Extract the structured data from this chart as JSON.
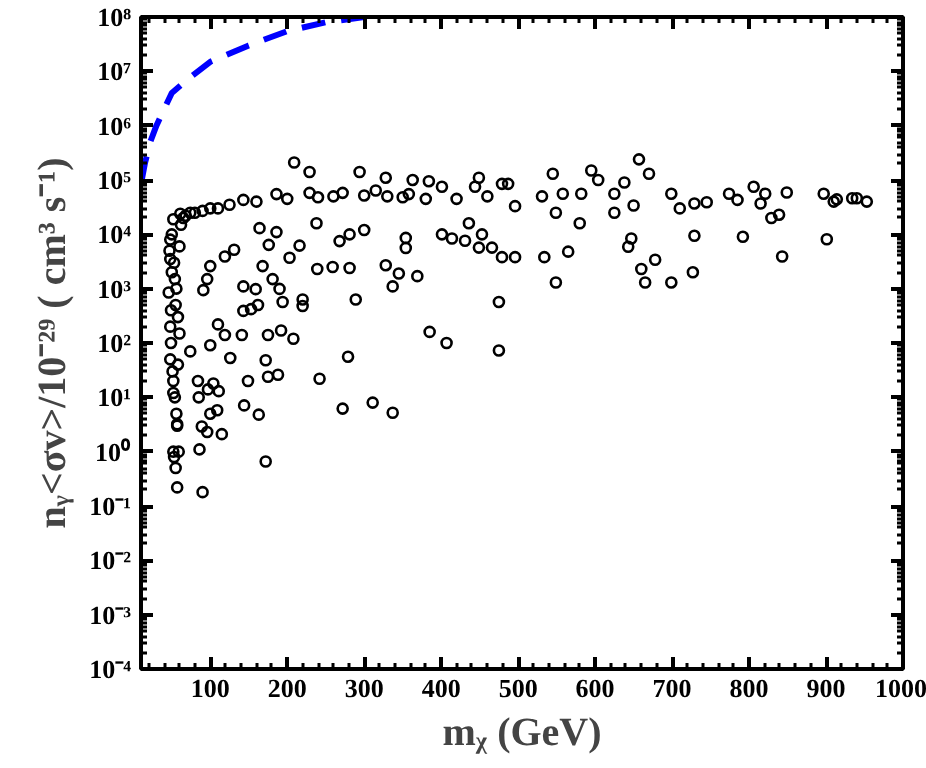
{
  "chart_data": {
    "type": "scatter",
    "xlabel": "mᵪ (GeV)",
    "ylabel": "nᵧ<σv>/10⁻²⁹ ( cm³ s⁻¹)",
    "log": "y",
    "grid": false,
    "xlim": [
      10,
      1000
    ],
    "xticks": [
      100,
      200,
      300,
      400,
      500,
      600,
      700,
      800,
      900,
      1000
    ],
    "ylim": [
      0.0001,
      100000000
    ],
    "yticks": [
      {
        "value": 0.0001,
        "label": "10⁻⁴"
      },
      {
        "value": 0.001,
        "label": "10⁻³"
      },
      {
        "value": 0.01,
        "label": "10⁻²"
      },
      {
        "value": 0.1,
        "label": "10⁻¹"
      },
      {
        "value": 1,
        "label": "10⁰"
      },
      {
        "value": 10,
        "label": "10¹"
      },
      {
        "value": 100,
        "label": "10²"
      },
      {
        "value": 1000,
        "label": "10³"
      },
      {
        "value": 10000,
        "label": "10⁴"
      },
      {
        "value": 100000,
        "label": "10⁵"
      },
      {
        "value": 1000000,
        "label": "10⁶"
      },
      {
        "value": 10000000,
        "label": "10⁷"
      },
      {
        "value": 100000000,
        "label": "10⁸"
      }
    ],
    "series": [
      {
        "type": "line",
        "color": "#0000ff",
        "line_style": "dashed",
        "x": [
          11,
          15,
          22,
          30,
          50,
          75,
          100,
          150,
          200,
          250,
          300
        ],
        "values": [
          100000,
          200000,
          500000,
          1000000,
          4000000,
          8000000,
          15000000,
          30000000,
          55000000,
          80000000,
          100000000
        ]
      },
      {
        "color": "#000000",
        "marker": "circle",
        "x": [
          57,
          90,
          55,
          52,
          57,
          52,
          48,
          48,
          46,
          48,
          48,
          52,
          61,
          74,
          100,
          143,
          186,
          229,
          272,
          315,
          358,
          401,
          444,
          487,
          50,
          53,
          56,
          58,
          49,
          51,
          54,
          57,
          59,
          50,
          55,
          60,
          47,
          52,
          56,
          53,
          58,
          49,
          54,
          60,
          62,
          65,
          68,
          80,
          90,
          110,
          125,
          160,
          200,
          240,
          260,
          300,
          330,
          350,
          380,
          420,
          460,
          209,
          229,
          294,
          328,
          363,
          384,
          449,
          479,
          496,
          531,
          545,
          558,
          549,
          580,
          582,
          595,
          604,
          625,
          625,
          638,
          650,
          657,
          670,
          699,
          710,
          729,
          745,
          774,
          785,
          806,
          815,
          821,
          829,
          839,
          849,
          897,
          910,
          914,
          934,
          940,
          953,
          436,
          453,
          449,
          466,
          401,
          414,
          431,
          479,
          496,
          534,
          549,
          565,
          643,
          647,
          660,
          665,
          678,
          699,
          729,
          727,
          792,
          843,
          901,
          475,
          475,
          407,
          385,
          337,
          345,
          369,
          354,
          354,
          328,
          289,
          281,
          259,
          239,
          242,
          279,
          272,
          311,
          337,
          220,
          220,
          208,
          192,
          188,
          175,
          175,
          172,
          172,
          163,
          149,
          144,
          141,
          126,
          119,
          104,
          111,
          109,
          115,
          100,
          97,
          96,
          89,
          86,
          85,
          84,
          74,
          110,
          100,
          91,
          96,
          100,
          119,
          131,
          143,
          159,
          162,
          168,
          181,
          190,
          194,
          143,
          153,
          176,
          203,
          186,
          216,
          268,
          281,
          300,
          238,
          164
        ],
        "values": [
          0.22,
          0.18,
          0.5,
          1.0,
          3.2,
          12,
          50,
          200,
          850,
          3500,
          8000,
          19000,
          24000,
          25000,
          30000,
          43000,
          55000,
          58000,
          58000,
          64000,
          55000,
          75000,
          75000,
          85000,
          10000,
          3000,
          1000,
          300,
          100,
          30,
          10,
          3,
          1,
          2000,
          500,
          150,
          5000,
          20,
          5,
          0.8,
          40,
          400,
          1500,
          6000,
          15000,
          20000,
          22000,
          25000,
          27000,
          30000,
          35000,
          40000,
          45000,
          48000,
          50000,
          52000,
          50000,
          48000,
          45000,
          45000,
          50000,
          210000,
          140000,
          140000,
          110000,
          100000,
          95000,
          110000,
          85000,
          33000,
          50000,
          130000,
          56000,
          25000,
          16000,
          56000,
          150000,
          100000,
          56000,
          25000,
          90000,
          34000,
          240000,
          130000,
          56000,
          30000,
          37000,
          39000,
          56000,
          43000,
          75000,
          37000,
          56000,
          20000,
          23000,
          59000,
          56000,
          40000,
          44000,
          46000,
          46000,
          40000,
          16000,
          10000,
          5700,
          5700,
          10000,
          8400,
          7600,
          3800,
          3800,
          3800,
          1300,
          4800,
          5900,
          8400,
          2300,
          1300,
          3400,
          1300,
          9400,
          2000,
          9000,
          3900,
          8100,
          570,
          73,
          100,
          160,
          1100,
          1900,
          1700,
          8600,
          5600,
          2700,
          630,
          2400,
          2500,
          2300,
          22,
          56,
          6.2,
          8,
          5.2,
          630,
          480,
          120,
          170,
          26,
          140,
          24,
          48,
          0.66,
          4.8,
          20,
          7.1,
          140,
          53,
          140,
          18,
          13,
          5.8,
          2.1,
          5,
          14,
          2.3,
          2.9,
          1.1,
          10,
          20,
          70,
          220,
          91,
          940,
          1500,
          2600,
          3900,
          5200,
          1100,
          980,
          500,
          2600,
          1500,
          990,
          570,
          390,
          420,
          6400,
          3700,
          11000,
          6200,
          7500,
          10000,
          12000,
          16000,
          13000
        ]
      }
    ]
  }
}
